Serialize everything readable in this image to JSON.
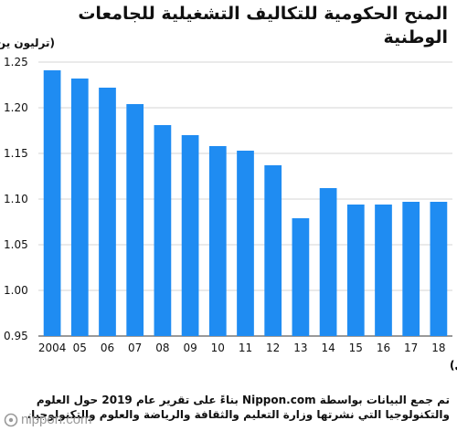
{
  "chart_data": {
    "type": "bar",
    "title": "المنح الحكومية للتكاليف التشغيلية للجامعات الوطنية",
    "ylabel": "(ترليون ين)",
    "xlabel": "(العام المالي)",
    "categories": [
      "2004",
      "05",
      "06",
      "07",
      "08",
      "09",
      "10",
      "11",
      "12",
      "13",
      "14",
      "15",
      "16",
      "17",
      "18"
    ],
    "values": [
      1.241,
      1.232,
      1.222,
      1.204,
      1.181,
      1.17,
      1.158,
      1.153,
      1.137,
      1.079,
      1.112,
      1.094,
      1.094,
      1.097,
      1.097
    ],
    "ylim": [
      0.95,
      1.25
    ],
    "yticks": [
      "1.25",
      "1.20",
      "1.15",
      "1.10",
      "1.05",
      "1.00",
      "0.95"
    ],
    "grid": true,
    "bar_color": "#1f8cf2",
    "grid_color": "#d6d6d6"
  },
  "footnote": "تم جمع البيانات بواسطة Nippon.com بناءً على تقرير عام 2019 حول العلوم والتكنولوجيا التي نشرتها وزارة التعليم والثقافة والرياضة والعلوم والتكنولوجيا.",
  "logo_text": "nippon.com"
}
